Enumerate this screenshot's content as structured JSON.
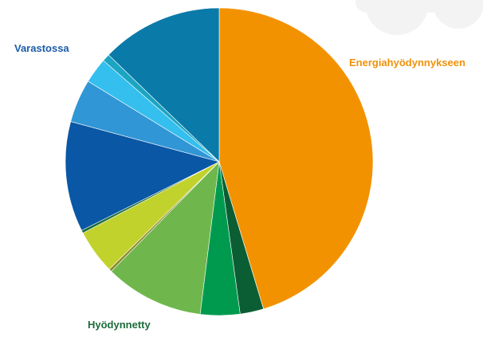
{
  "chart_data": {
    "type": "pie",
    "title": "",
    "start_angle_deg": 0,
    "direction": "clockwise",
    "series_labels": [
      {
        "text": "Varastossa",
        "color": "#1a5ca8"
      },
      {
        "text": "Energiahyödynnykseen",
        "color": "#f0920a"
      },
      {
        "text": "Hyödynnetty",
        "color": "#1b6b3a"
      }
    ],
    "slices": [
      {
        "value": 45.8,
        "color": "#f39200"
      },
      {
        "value": 2.5,
        "color": "#0b5e34"
      },
      {
        "value": 4.2,
        "color": "#009a4e"
      },
      {
        "value": 10.5,
        "color": "#6fb74c"
      },
      {
        "value": 0.3,
        "color": "#8a8a2a"
      },
      {
        "value": 4.7,
        "color": "#c2d22d"
      },
      {
        "value": 0.3,
        "color": "#1a6e3c"
      },
      {
        "value": 11.7,
        "color": "#0a57a5"
      },
      {
        "value": 4.6,
        "color": "#3196d6"
      },
      {
        "value": 2.7,
        "color": "#34bfee"
      },
      {
        "value": 0.8,
        "color": "#1ca5c2"
      },
      {
        "value": 12.9,
        "color": "#0a7aa8"
      }
    ]
  }
}
